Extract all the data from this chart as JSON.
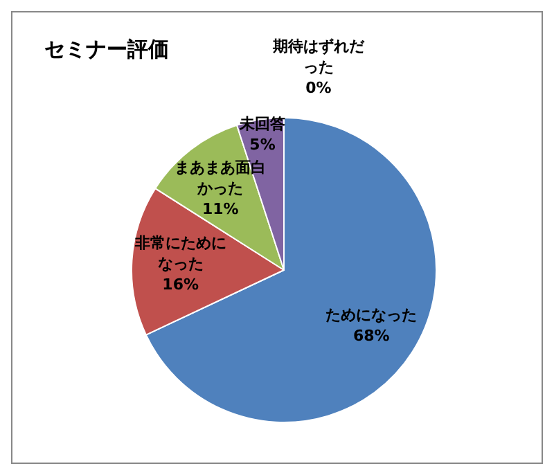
{
  "chart_data": {
    "type": "pie",
    "title": "セミナー評価",
    "categories": [
      "ためになった",
      "非常にためになった",
      "まあまあ面白かった",
      "未回答",
      "期待はずれだった"
    ],
    "values": [
      68,
      16,
      11,
      5,
      0
    ],
    "colors": [
      "#4f81bd",
      "#c0504d",
      "#9bbb59",
      "#8064a2",
      "#4bacc6"
    ],
    "value_labels": [
      "68%",
      "16%",
      "11%",
      "5%",
      "0%"
    ],
    "legend": false
  }
}
